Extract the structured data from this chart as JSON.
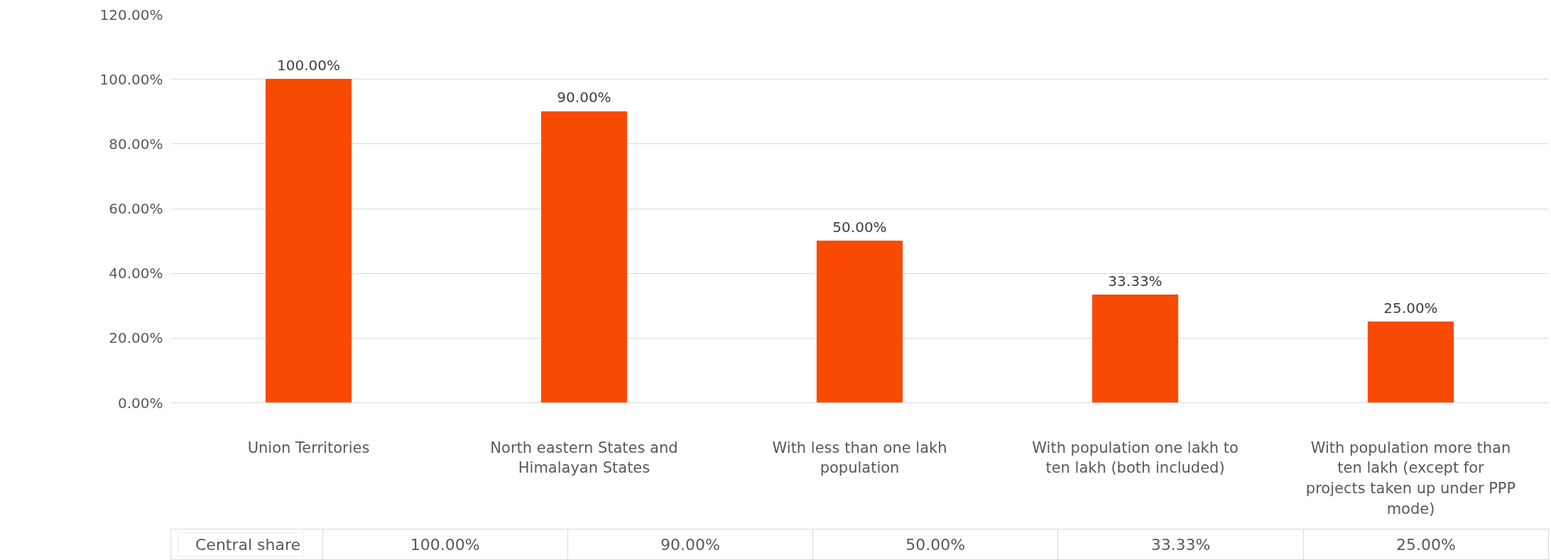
{
  "chart_data": {
    "type": "bar",
    "categories": [
      "Union Territories",
      "North eastern States and Himalayan States",
      "With less than one lakh population",
      "With population one lakh to ten lakh (both included)",
      "With population more than ten lakh (except for projects taken up under PPP mode)"
    ],
    "series": [
      {
        "name": "Central share",
        "color": "#f84a00",
        "values": [
          100,
          90,
          50,
          33.33,
          25
        ],
        "value_labels": [
          "100.00%",
          "90.00%",
          "50.00%",
          "33.33%",
          "25.00%"
        ]
      }
    ],
    "ylim": [
      0,
      120
    ],
    "yticks": [
      {
        "value": 0,
        "label": "0.00%"
      },
      {
        "value": 20,
        "label": "20.00%"
      },
      {
        "value": 40,
        "label": "40.00%"
      },
      {
        "value": 60,
        "label": "60.00%"
      },
      {
        "value": 80,
        "label": "80.00%"
      },
      {
        "value": 100,
        "label": "100.00%"
      },
      {
        "value": 120,
        "label": "120.00%"
      }
    ],
    "grid": "y",
    "legend": "bottom left"
  }
}
